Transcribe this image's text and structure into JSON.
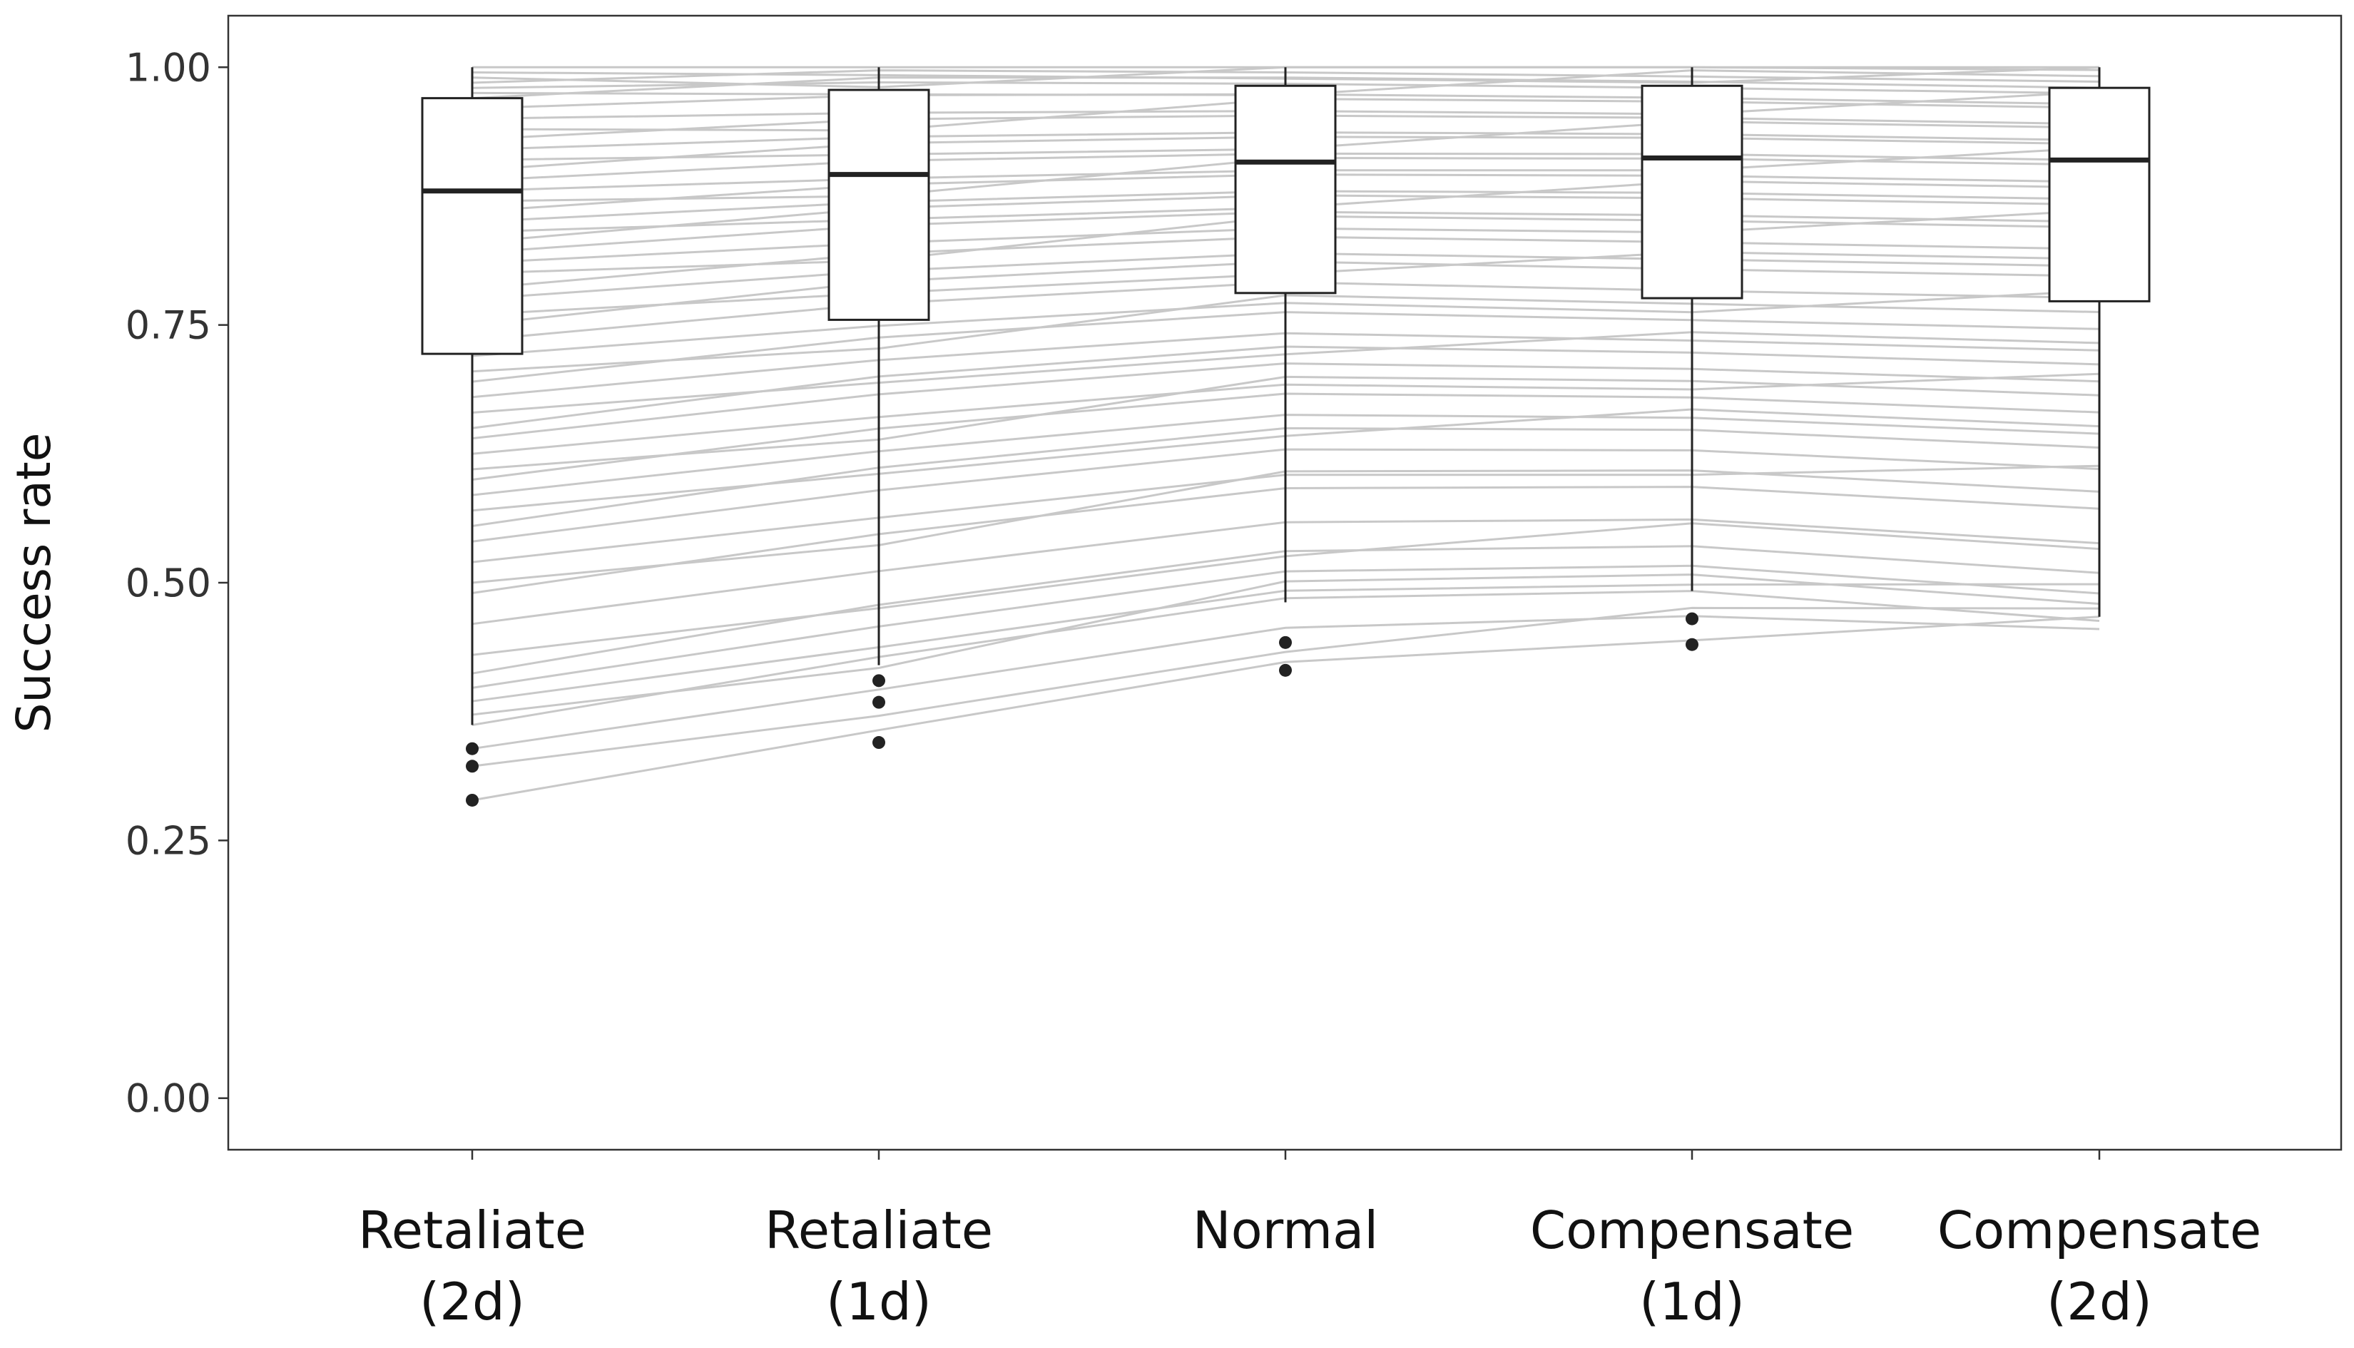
{
  "chart_data": {
    "type": "boxplot",
    "ylabel": "Success rate",
    "ylim": [
      -0.05,
      1.05
    ],
    "yticks": [
      {
        "value": 0.0,
        "label": "0.00"
      },
      {
        "value": 0.25,
        "label": "0.25"
      },
      {
        "value": 0.5,
        "label": "0.50"
      },
      {
        "value": 0.75,
        "label": "0.75"
      },
      {
        "value": 1.0,
        "label": "1.00"
      }
    ],
    "categories": [
      {
        "line1": "Retaliate",
        "line2": "(2d)"
      },
      {
        "line1": "Retaliate",
        "line2": "(1d)"
      },
      {
        "line1": "Normal",
        "line2": ""
      },
      {
        "line1": "Compensate",
        "line2": "(1d)"
      },
      {
        "line1": "Compensate",
        "line2": "(2d)"
      }
    ],
    "boxes": [
      {
        "q1": 0.722,
        "median": 0.88,
        "q3": 0.97,
        "whisker_low": 0.362,
        "whisker_high": 1.0,
        "outliers": [
          0.339,
          0.322,
          0.289
        ]
      },
      {
        "q1": 0.755,
        "median": 0.896,
        "q3": 0.978,
        "whisker_low": 0.42,
        "whisker_high": 1.0,
        "outliers": [
          0.405,
          0.384,
          0.345
        ]
      },
      {
        "q1": 0.781,
        "median": 0.908,
        "q3": 0.982,
        "whisker_low": 0.481,
        "whisker_high": 1.0,
        "outliers": [
          0.442,
          0.415
        ]
      },
      {
        "q1": 0.776,
        "median": 0.912,
        "q3": 0.982,
        "whisker_low": 0.492,
        "whisker_high": 1.0,
        "outliers": [
          0.465,
          0.44
        ]
      },
      {
        "q1": 0.773,
        "median": 0.91,
        "q3": 0.98,
        "whisker_low": 0.467,
        "whisker_high": 1.0,
        "outliers": []
      }
    ],
    "subject_lines_start": [
      0.289,
      0.322,
      0.339,
      0.362,
      0.372,
      0.385,
      0.398,
      0.412,
      0.43,
      0.46,
      0.49,
      0.5,
      0.52,
      0.54,
      0.555,
      0.57,
      0.585,
      0.6,
      0.61,
      0.625,
      0.64,
      0.65,
      0.665,
      0.68,
      0.695,
      0.705,
      0.72,
      0.735,
      0.75,
      0.76,
      0.775,
      0.785,
      0.8,
      0.81,
      0.82,
      0.83,
      0.84,
      0.85,
      0.86,
      0.87,
      0.88,
      0.89,
      0.9,
      0.91,
      0.92,
      0.93,
      0.94,
      0.95,
      0.96,
      0.97,
      0.975,
      0.98,
      0.985,
      0.99,
      0.995,
      1.0
    ],
    "colors": {
      "line": "#c8c8c8",
      "box_edge": "#222222",
      "median": "#222222",
      "outlier": "#222222",
      "axis_text": "#333333"
    },
    "grid": false,
    "legend": "none"
  }
}
